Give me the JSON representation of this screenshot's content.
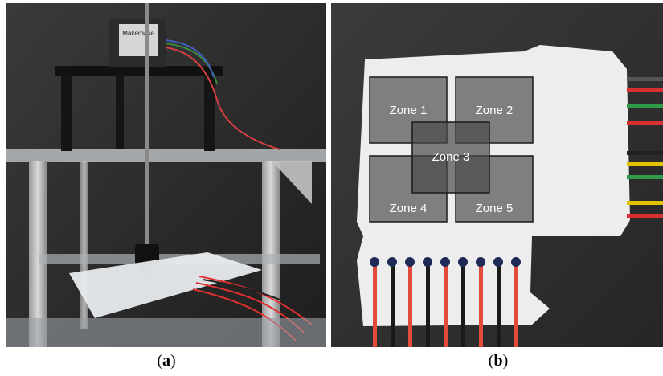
{
  "figure": {
    "panel_a": {
      "caption_open": "(",
      "caption_letter": "a",
      "caption_close": ")",
      "motor_label": "Makerbase"
    },
    "panel_b": {
      "caption_open": "(",
      "caption_letter": "b",
      "caption_close": ")",
      "zones": [
        "Zone 1",
        "Zone 2",
        "Zone 3",
        "Zone 4",
        "Zone 5"
      ]
    }
  }
}
